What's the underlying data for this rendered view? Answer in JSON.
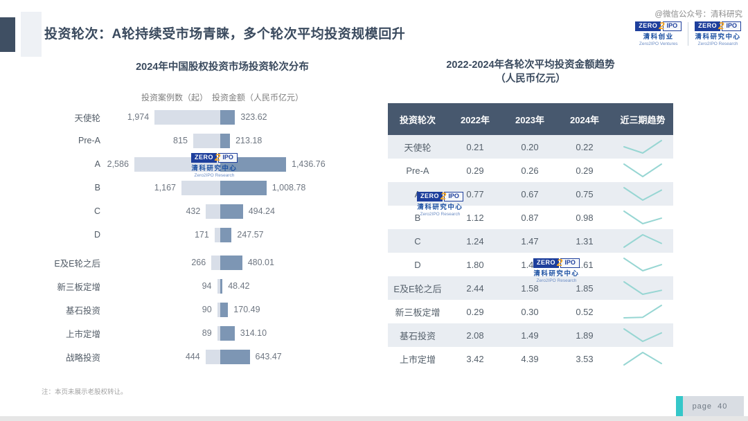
{
  "page": {
    "title": "投资轮次：A轮持续受市场青睐，多个轮次平均投资规模回升",
    "watermark": "@微信公众号：清科研究",
    "note": "注：本页未展示老股权转让。",
    "page_label": "page",
    "page_number": "40"
  },
  "logos": {
    "zero": "ZERO",
    "two": "2",
    "ipo": "IPO",
    "ventures_cn": "清科创业",
    "ventures_en": "Zero2IPO Ventures",
    "research_cn": "清科研究中心",
    "research_en": "Zero2IPO Research"
  },
  "colors": {
    "case_bar": "#d8dee8",
    "amount_bar": "#7d96b4",
    "table_header_bg": "#47586e",
    "table_alt_row_bg": "#e9edf2",
    "sparkline": "#97d6d3",
    "accent_teal": "#35c7c9",
    "title_text": "#3a4a5e"
  },
  "chart_data": [
    {
      "type": "bar",
      "title": "2024年中国股权投资市场投资轮次分布",
      "legend": [
        "投资案例数（起）",
        "投资金额（人民币亿元）"
      ],
      "categories": [
        "天使轮",
        "Pre-A",
        "A",
        "B",
        "C",
        "D",
        "E及E轮之后",
        "新三板定增",
        "基石投资",
        "上市定增",
        "战略投资"
      ],
      "series": [
        {
          "name": "投资案例数（起）",
          "values": [
            1974,
            815,
            2586,
            1167,
            432,
            171,
            266,
            94,
            90,
            89,
            444
          ],
          "display": [
            "1,974",
            "815",
            "2,586",
            "1,167",
            "432",
            "171",
            "266",
            "94",
            "90",
            "89",
            "444"
          ]
        },
        {
          "name": "投资金额（人民币亿元）",
          "values": [
            323.62,
            213.18,
            1436.76,
            1008.78,
            494.24,
            247.57,
            480.01,
            48.42,
            170.49,
            314.1,
            643.47
          ],
          "display": [
            "323.62",
            "213.18",
            "1,436.76",
            "1,008.78",
            "494.24",
            "247.57",
            "480.01",
            "48.42",
            "170.49",
            "314.10",
            "643.47"
          ]
        }
      ]
    },
    {
      "type": "table",
      "title": "2022-2024年各轮次平均投资金额趋势",
      "subtitle": "（人民币亿元）",
      "columns": [
        "投资轮次",
        "2022年",
        "2023年",
        "2024年",
        "近三期趋势"
      ],
      "rows": [
        {
          "label": "天使轮",
          "values": [
            "0.21",
            "0.20",
            "0.22"
          ]
        },
        {
          "label": "Pre-A",
          "values": [
            "0.29",
            "0.26",
            "0.29"
          ]
        },
        {
          "label": "A",
          "values": [
            "0.77",
            "0.67",
            "0.75"
          ]
        },
        {
          "label": "B",
          "values": [
            "1.12",
            "0.87",
            "0.98"
          ]
        },
        {
          "label": "C",
          "values": [
            "1.24",
            "1.47",
            "1.31"
          ]
        },
        {
          "label": "D",
          "values": [
            "1.80",
            "1.43",
            "1.61"
          ]
        },
        {
          "label": "E及E轮之后",
          "values": [
            "2.44",
            "1.58",
            "1.85"
          ]
        },
        {
          "label": "新三板定增",
          "values": [
            "0.29",
            "0.30",
            "0.52"
          ]
        },
        {
          "label": "基石投资",
          "values": [
            "2.08",
            "1.49",
            "1.89"
          ]
        },
        {
          "label": "上市定增",
          "values": [
            "3.42",
            "4.39",
            "3.53"
          ]
        }
      ]
    }
  ]
}
